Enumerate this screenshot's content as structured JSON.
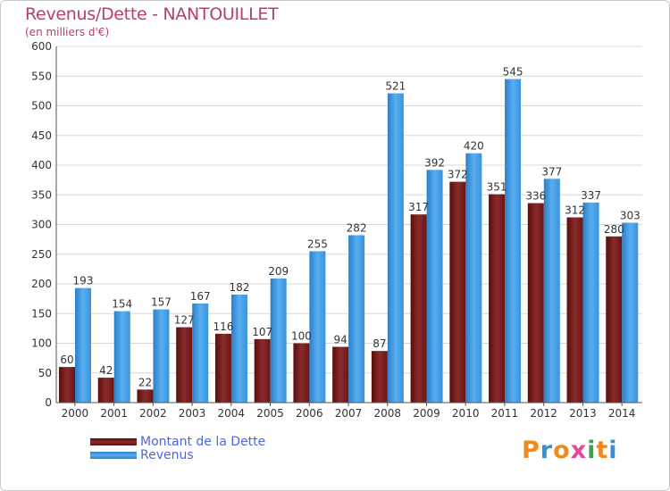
{
  "header": {
    "title": "Revenus/Dette - NANTOUILLET",
    "subtitle": "(en milliers d'€)"
  },
  "chart_data": {
    "type": "bar",
    "categories": [
      "2000",
      "2001",
      "2002",
      "2003",
      "2004",
      "2005",
      "2006",
      "2007",
      "2008",
      "2009",
      "2010",
      "2011",
      "2012",
      "2013",
      "2014"
    ],
    "series": [
      {
        "name": "Montant de la Dette",
        "color": "#7a1c1c",
        "values": [
          60,
          42,
          22,
          127,
          116,
          107,
          100,
          94,
          87,
          317,
          372,
          351,
          336,
          312,
          280
        ]
      },
      {
        "name": "Revenus",
        "color": "#3a93dc",
        "values": [
          193,
          154,
          157,
          167,
          182,
          209,
          255,
          282,
          521,
          392,
          420,
          545,
          377,
          337,
          303
        ]
      }
    ],
    "ylim": [
      0,
      600
    ],
    "yticks": [
      0,
      50,
      100,
      150,
      200,
      250,
      300,
      350,
      400,
      450,
      500,
      550,
      600
    ],
    "grid": true,
    "legend_position": "bottom-left"
  },
  "legend": {
    "items": [
      {
        "label": "Montant de la Dette",
        "color": "#7a1c1c"
      },
      {
        "label": "Revenus",
        "color": "#3a93dc"
      }
    ]
  },
  "brand": {
    "letters": [
      {
        "ch": "P",
        "color": "#f08a1e"
      },
      {
        "ch": "r",
        "color": "#3a8fd0"
      },
      {
        "ch": "o",
        "color": "#f08a1e"
      },
      {
        "ch": "x",
        "color": "#e04a9a"
      },
      {
        "ch": "i",
        "color": "#3aa64a"
      },
      {
        "ch": "t",
        "color": "#f08a1e"
      },
      {
        "ch": "i",
        "color": "#3a8fd0"
      }
    ]
  }
}
